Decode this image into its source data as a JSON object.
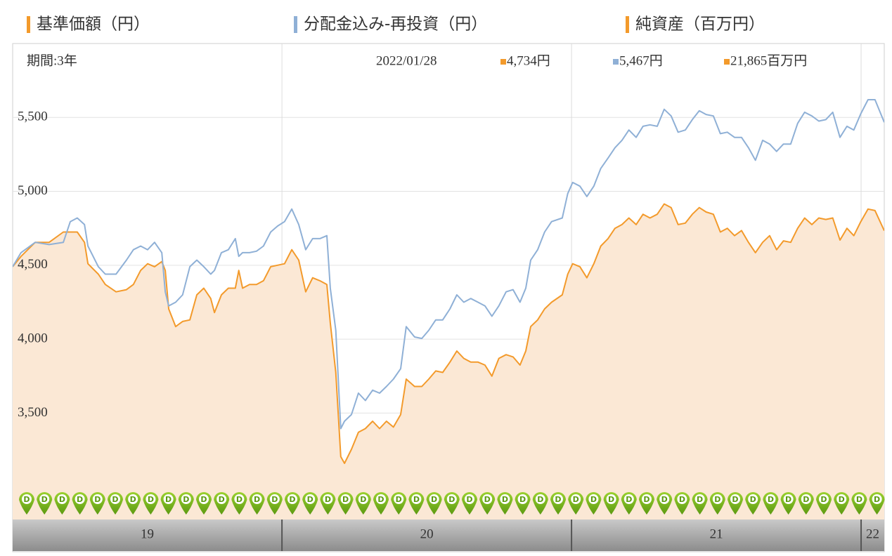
{
  "chart_data": {
    "type": "line",
    "period_label": "期間:3年",
    "date_label": "2022/01/28",
    "readout": [
      {
        "text": "4,734円",
        "color": "#f39a2b"
      },
      {
        "text": "5,467円",
        "color": "#8fb0d6"
      },
      {
        "text": "21,865百万円",
        "color": "#f39a2b"
      }
    ],
    "extra_legend": {
      "name": "純資産（百万円）",
      "color": "#f39a2b"
    },
    "marker_text": "D",
    "xlim": [
      2019.07,
      2022.08
    ],
    "xticks": [
      {
        "value": 2019,
        "label": "19"
      },
      {
        "value": 2020,
        "label": "20"
      },
      {
        "value": 2021,
        "label": "21"
      },
      {
        "value": 2022,
        "label": "22"
      }
    ],
    "ylim": [
      2780,
      6000
    ],
    "yticks": [
      {
        "value": 3500,
        "label": "3,500"
      },
      {
        "value": 4000,
        "label": "4,000"
      },
      {
        "value": 4500,
        "label": "4,500"
      },
      {
        "value": 5000,
        "label": "5,000"
      },
      {
        "value": 5500,
        "label": "5,500"
      }
    ],
    "grid": true,
    "x": [
      2019.07,
      2019.099,
      2019.148,
      2019.196,
      2019.245,
      2019.269,
      2019.293,
      2019.318,
      2019.33,
      2019.366,
      2019.39,
      2019.427,
      2019.463,
      2019.487,
      2019.512,
      2019.536,
      2019.56,
      2019.585,
      2019.597,
      2019.609,
      2019.633,
      2019.657,
      2019.682,
      2019.706,
      2019.73,
      2019.754,
      2019.767,
      2019.791,
      2019.815,
      2019.839,
      2019.851,
      2019.864,
      2019.888,
      2019.912,
      2019.936,
      2019.961,
      2019.985,
      2020.009,
      2020.034,
      2020.058,
      2020.082,
      2020.106,
      2020.131,
      2020.155,
      2020.167,
      2020.186,
      2020.203,
      2020.216,
      2020.24,
      2020.264,
      2020.288,
      2020.313,
      2020.337,
      2020.361,
      2020.385,
      2020.41,
      2020.429,
      2020.458,
      2020.483,
      2020.507,
      2020.531,
      2020.555,
      2020.58,
      2020.604,
      2020.628,
      2020.652,
      2020.677,
      2020.701,
      2020.725,
      2020.749,
      2020.774,
      2020.798,
      2020.822,
      2020.842,
      2020.859,
      2020.883,
      2020.907,
      2020.931,
      2020.968,
      2020.987,
      2021.004,
      2021.029,
      2021.053,
      2021.077,
      2021.101,
      2021.126,
      2021.15,
      2021.174,
      2021.198,
      2021.223,
      2021.247,
      2021.271,
      2021.296,
      2021.32,
      2021.344,
      2021.368,
      2021.393,
      2021.417,
      2021.441,
      2021.465,
      2021.49,
      2021.514,
      2021.538,
      2021.563,
      2021.587,
      2021.611,
      2021.635,
      2021.66,
      2021.684,
      2021.708,
      2021.732,
      2021.757,
      2021.781,
      2021.805,
      2021.83,
      2021.854,
      2021.878,
      2021.902,
      2021.927,
      2021.951,
      2021.975,
      2021.999,
      2022.024,
      2022.048,
      2022.08
    ],
    "series": [
      {
        "name": "基準価額（円）",
        "color": "#f39a2b",
        "area_color": "#fbe8d5",
        "values": [
          4490,
          4560,
          4655,
          4655,
          4725,
          4725,
          4725,
          4655,
          4510,
          4440,
          4370,
          4320,
          4335,
          4370,
          4465,
          4510,
          4490,
          4525,
          4465,
          4205,
          4085,
          4120,
          4130,
          4300,
          4345,
          4275,
          4180,
          4300,
          4345,
          4345,
          4465,
          4345,
          4370,
          4370,
          4395,
          4490,
          4500,
          4510,
          4605,
          4535,
          4320,
          4415,
          4395,
          4370,
          4110,
          3775,
          3205,
          3160,
          3255,
          3370,
          3395,
          3445,
          3395,
          3445,
          3405,
          3490,
          3730,
          3680,
          3680,
          3730,
          3785,
          3775,
          3845,
          3920,
          3870,
          3845,
          3845,
          3825,
          3750,
          3870,
          3895,
          3880,
          3825,
          3920,
          4085,
          4130,
          4205,
          4250,
          4300,
          4440,
          4510,
          4490,
          4415,
          4510,
          4630,
          4680,
          4750,
          4775,
          4820,
          4775,
          4845,
          4820,
          4845,
          4915,
          4890,
          4775,
          4785,
          4845,
          4890,
          4860,
          4845,
          4725,
          4750,
          4700,
          4735,
          4655,
          4585,
          4655,
          4700,
          4605,
          4665,
          4655,
          4750,
          4820,
          4775,
          4820,
          4810,
          4820,
          4670,
          4750,
          4700,
          4795,
          4880,
          4870,
          4734
        ]
      },
      {
        "name": "分配金込み-再投資（円）",
        "color": "#8fb0d6",
        "values": [
          4490,
          4585,
          4655,
          4640,
          4655,
          4795,
          4820,
          4775,
          4630,
          4490,
          4440,
          4440,
          4535,
          4605,
          4630,
          4605,
          4655,
          4585,
          4320,
          4225,
          4250,
          4300,
          4490,
          4535,
          4490,
          4440,
          4465,
          4585,
          4605,
          4680,
          4560,
          4585,
          4585,
          4595,
          4630,
          4725,
          4765,
          4795,
          4880,
          4775,
          4605,
          4680,
          4680,
          4700,
          4345,
          4060,
          3395,
          3445,
          3490,
          3635,
          3585,
          3655,
          3635,
          3680,
          3730,
          3800,
          4085,
          4015,
          4005,
          4060,
          4130,
          4130,
          4205,
          4300,
          4250,
          4275,
          4250,
          4225,
          4155,
          4225,
          4320,
          4335,
          4250,
          4345,
          4535,
          4605,
          4725,
          4795,
          4820,
          4985,
          5060,
          5035,
          4965,
          5035,
          5155,
          5225,
          5295,
          5345,
          5415,
          5365,
          5440,
          5450,
          5440,
          5555,
          5510,
          5400,
          5415,
          5485,
          5545,
          5520,
          5510,
          5390,
          5400,
          5365,
          5365,
          5295,
          5210,
          5345,
          5320,
          5270,
          5320,
          5320,
          5460,
          5535,
          5510,
          5475,
          5485,
          5535,
          5365,
          5440,
          5415,
          5525,
          5620,
          5620,
          5467
        ]
      }
    ]
  }
}
